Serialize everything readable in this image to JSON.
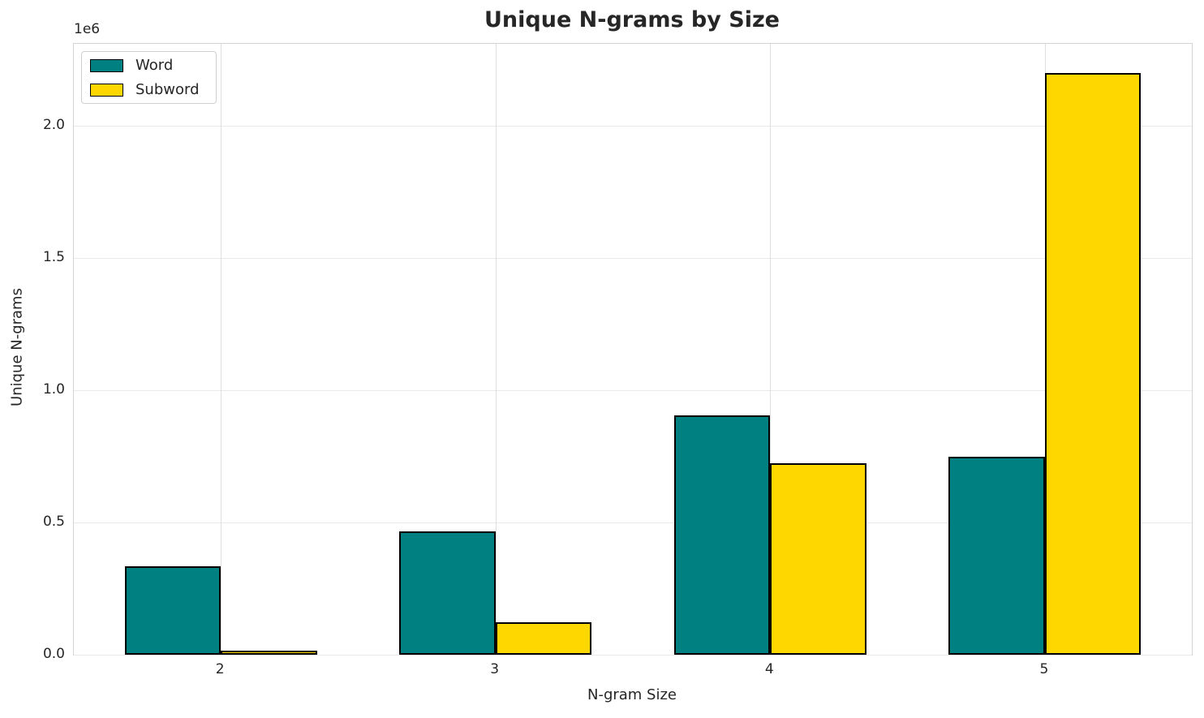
{
  "chart_data": {
    "type": "bar",
    "title": "Unique N-grams by Size",
    "xlabel": "N-gram Size",
    "ylabel": "Unique N-grams",
    "offset_text": "1e6",
    "categories": [
      "2",
      "3",
      "4",
      "5"
    ],
    "series": [
      {
        "name": "Word",
        "color": "#008080",
        "values": [
          335000,
          465000,
          905000,
          750000
        ]
      },
      {
        "name": "Subword",
        "color": "#FFD700",
        "values": [
          15000,
          122000,
          725000,
          2200000
        ]
      }
    ],
    "bar_edge_color": "#000000",
    "bar_width_fraction": 0.35,
    "ylim": [
      0,
      2310000
    ],
    "yticks": [
      {
        "value": 0,
        "label": "0.0"
      },
      {
        "value": 500000,
        "label": "0.5"
      },
      {
        "value": 1000000,
        "label": "1.0"
      },
      {
        "value": 1500000,
        "label": "1.5"
      },
      {
        "value": 2000000,
        "label": "2.0"
      }
    ],
    "grid": true,
    "legend_position": "upper left"
  },
  "colors": {
    "background": "#ffffff",
    "text": "#262626",
    "grid_horizontal": "#e9e9e9",
    "grid_vertical": "#dedede",
    "spine": "#d5d5d5",
    "word_fill": "#008080",
    "subword_fill": "#FFD700",
    "bar_edge": "#000000"
  }
}
